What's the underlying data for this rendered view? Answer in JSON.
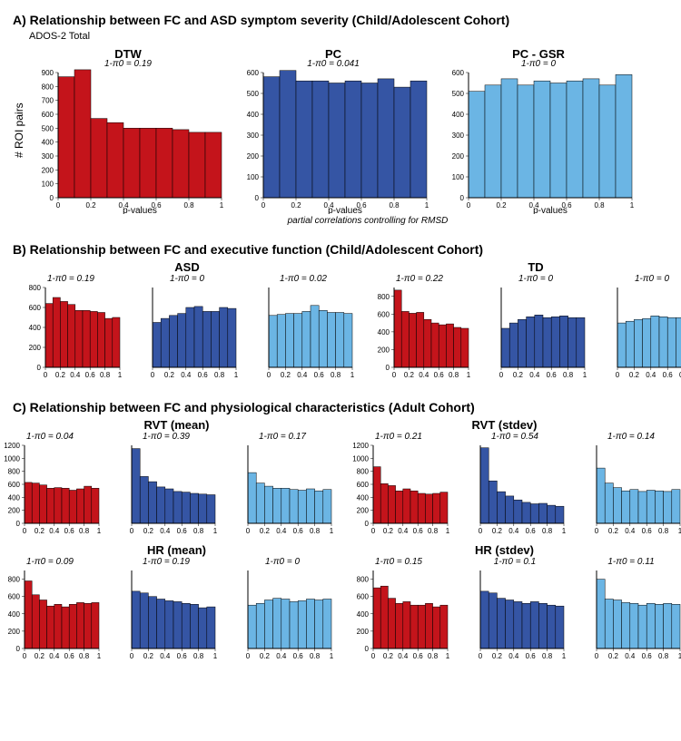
{
  "colors": {
    "red": "#c4141b",
    "blue": "#3555a4",
    "light": "#6bb5e4",
    "axis": "#000000",
    "bg": "#ffffff"
  },
  "font": {
    "family": "Arial",
    "title_pt": 14,
    "chart_title_pt": 13,
    "sub_pt": 10,
    "tick_pt": 9
  },
  "xaxis": {
    "min": 0,
    "max": 1,
    "ticks": [
      0,
      0.2,
      0.4,
      0.6,
      0.8,
      1
    ],
    "label": "p-values",
    "bins": 10
  },
  "sectionA": {
    "title": "A) Relationship between FC and ASD symptom severity (Child/Adolescent Cohort)",
    "sub": "ADOS-2 Total",
    "ylabel": "# ROI pairs",
    "axis_note": "partial correlations controlling for RMSD",
    "charts": [
      {
        "title": "DTW",
        "pi": "1-π0 = 0.19",
        "color": "#c4141b",
        "ymax": 900,
        "ystep": 100,
        "data": [
          870,
          920,
          570,
          540,
          500,
          500,
          500,
          490,
          470,
          470
        ]
      },
      {
        "title": "PC",
        "pi": "1-π0 = 0.041",
        "color": "#3555a4",
        "ymax": 600,
        "ystep": 100,
        "data": [
          580,
          610,
          560,
          560,
          550,
          560,
          550,
          570,
          530,
          560
        ]
      },
      {
        "title": "PC - GSR",
        "pi": "1-π0 = 0",
        "color": "#6bb5e4",
        "ymax": 600,
        "ystep": 100,
        "data": [
          510,
          540,
          570,
          540,
          560,
          550,
          560,
          570,
          540,
          590
        ]
      }
    ]
  },
  "sectionB": {
    "title": "B) Relationship between FC and executive function (Child/Adolescent Cohort)",
    "groups": [
      {
        "label": "ASD",
        "charts": [
          {
            "pi": "1-π0 = 0.19",
            "color": "#c4141b",
            "ymax": 800,
            "ystep": 200,
            "data": [
              640,
              700,
              660,
              630,
              570,
              570,
              560,
              550,
              490,
              500
            ]
          },
          {
            "pi": "1-π0 = 0",
            "color": "#3555a4",
            "ymax": 800,
            "ystep": 200,
            "data": [
              450,
              490,
              520,
              540,
              600,
              610,
              560,
              560,
              600,
              590
            ]
          },
          {
            "pi": "1-π0 = 0.02",
            "color": "#6bb5e4",
            "ymax": 800,
            "ystep": 200,
            "data": [
              520,
              530,
              540,
              540,
              560,
              620,
              570,
              550,
              550,
              540
            ]
          }
        ]
      },
      {
        "label": "TD",
        "charts": [
          {
            "pi": "1-π0 = 0.22",
            "color": "#c4141b",
            "ymax": 900,
            "ystep": 200,
            "data": [
              870,
              630,
              610,
              620,
              540,
              500,
              480,
              490,
              450,
              440
            ]
          },
          {
            "pi": "1-π0 = 0",
            "color": "#3555a4",
            "ymax": 900,
            "ystep": 200,
            "data": [
              440,
              500,
              540,
              570,
              590,
              560,
              570,
              580,
              560,
              560
            ]
          },
          {
            "pi": "1-π0 = 0",
            "color": "#6bb5e4",
            "ymax": 900,
            "ystep": 200,
            "data": [
              500,
              520,
              540,
              550,
              580,
              570,
              560,
              560,
              560,
              570
            ]
          }
        ]
      }
    ]
  },
  "sectionC": {
    "title": "C) Relationship between FC and physiological characteristics (Adult Cohort)",
    "rows": [
      {
        "left_label": "RVT (mean)",
        "right_label": "RVT (stdev)",
        "charts": [
          {
            "pi": "1-π0 = 0.04",
            "color": "#c4141b",
            "ymax": 1200,
            "ystep": 200,
            "data": [
              630,
              620,
              590,
              540,
              550,
              540,
              510,
              530,
              570,
              540
            ]
          },
          {
            "pi": "1-π0 = 0.39",
            "color": "#3555a4",
            "ymax": 1200,
            "ystep": 200,
            "data": [
              1150,
              720,
              640,
              560,
              530,
              490,
              480,
              460,
              450,
              440
            ]
          },
          {
            "pi": "1-π0 = 0.17",
            "color": "#6bb5e4",
            "ymax": 1200,
            "ystep": 200,
            "data": [
              780,
              620,
              570,
              540,
              540,
              520,
              510,
              530,
              500,
              520
            ]
          },
          {
            "pi": "1-π0 = 0.21",
            "color": "#c4141b",
            "ymax": 1200,
            "ystep": 200,
            "data": [
              870,
              610,
              580,
              500,
              530,
              500,
              460,
              450,
              460,
              480
            ]
          },
          {
            "pi": "1-π0 = 0.54",
            "color": "#3555a4",
            "ymax": 1600,
            "ystep": 400,
            "data": [
              1550,
              870,
              650,
              560,
              480,
              430,
              400,
              410,
              370,
              350
            ]
          },
          {
            "pi": "1-π0 = 0.14",
            "color": "#6bb5e4",
            "ymax": 1200,
            "ystep": 200,
            "data": [
              850,
              620,
              550,
              500,
              520,
              490,
              510,
              500,
              490,
              520
            ]
          }
        ]
      },
      {
        "left_label": "HR (mean)",
        "right_label": "HR (stdev)",
        "charts": [
          {
            "pi": "1-π0 = 0.09",
            "color": "#c4141b",
            "ymax": 900,
            "ystep": 200,
            "data": [
              780,
              620,
              560,
              490,
              510,
              480,
              510,
              530,
              520,
              530
            ]
          },
          {
            "pi": "1-π0 = 0.19",
            "color": "#3555a4",
            "ymax": 900,
            "ystep": 200,
            "data": [
              660,
              640,
              600,
              570,
              550,
              540,
              520,
              510,
              470,
              480
            ]
          },
          {
            "pi": "1-π0 = 0",
            "color": "#6bb5e4",
            "ymax": 900,
            "ystep": 200,
            "data": [
              500,
              520,
              560,
              580,
              570,
              540,
              550,
              570,
              560,
              570
            ]
          },
          {
            "pi": "1-π0 = 0.15",
            "color": "#c4141b",
            "ymax": 900,
            "ystep": 200,
            "data": [
              700,
              720,
              580,
              520,
              540,
              500,
              500,
              520,
              480,
              500
            ]
          },
          {
            "pi": "1-π0 = 0.1",
            "color": "#3555a4",
            "ymax": 900,
            "ystep": 200,
            "data": [
              660,
              640,
              580,
              560,
              540,
              520,
              540,
              520,
              500,
              490
            ]
          },
          {
            "pi": "1-π0 = 0.11",
            "color": "#6bb5e4",
            "ymax": 900,
            "ystep": 200,
            "data": [
              800,
              570,
              560,
              530,
              520,
              500,
              520,
              510,
              520,
              510
            ]
          }
        ]
      }
    ]
  }
}
